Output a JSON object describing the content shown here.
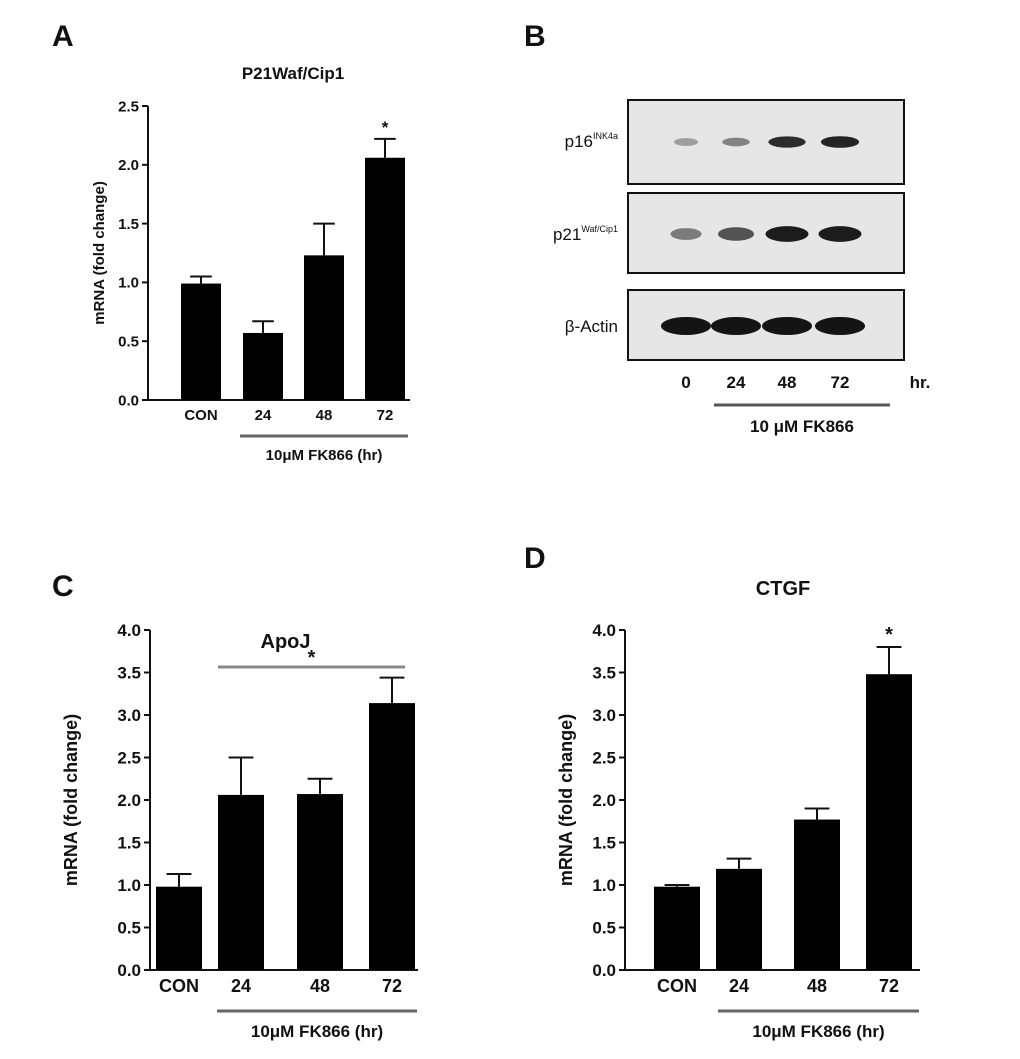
{
  "panels": {
    "a": {
      "letter": "A"
    },
    "b": {
      "letter": "B"
    },
    "c": {
      "letter": "C"
    },
    "d": {
      "letter": "D"
    }
  },
  "chart_data": [
    {
      "type": "bar",
      "panel": "A",
      "title": "P21Waf/Cip1",
      "ylabel": "mRNA (fold change)",
      "categories": [
        "CON",
        "24",
        "48",
        "72"
      ],
      "values": [
        0.99,
        0.57,
        1.23,
        2.06
      ],
      "errors": [
        0.06,
        0.1,
        0.27,
        0.16
      ],
      "ylim": [
        0.0,
        2.5
      ],
      "yticks": [
        "0.0",
        "0.5",
        "1.0",
        "1.5",
        "2.0",
        "2.5"
      ],
      "significance": [
        {
          "category": "72",
          "label": "*"
        }
      ],
      "bracket_label": "10μM FK866 (hr)",
      "bar_color": "#000000"
    },
    {
      "type": "bar",
      "panel": "C",
      "title": "ApoJ",
      "ylabel": "mRNA (fold change)",
      "categories": [
        "CON",
        "24",
        "48",
        "72"
      ],
      "values": [
        0.98,
        2.06,
        2.07,
        3.14
      ],
      "errors": [
        0.15,
        0.44,
        0.18,
        0.3
      ],
      "ylim": [
        0.0,
        4.0
      ],
      "yticks": [
        "0.0",
        "0.5",
        "1.0",
        "1.5",
        "2.0",
        "2.5",
        "3.0",
        "3.5",
        "4.0"
      ],
      "significance_line": {
        "from": "24",
        "to": "72",
        "label": "*"
      },
      "bracket_label": "10μM FK866 (hr)",
      "bar_color": "#000000"
    },
    {
      "type": "bar",
      "panel": "D",
      "title": "CTGF",
      "ylabel": "mRNA (fold change)",
      "categories": [
        "CON",
        "24",
        "48",
        "72"
      ],
      "values": [
        0.98,
        1.19,
        1.77,
        3.48
      ],
      "errors": [
        0.02,
        0.12,
        0.13,
        0.32
      ],
      "ylim": [
        0.0,
        4.0
      ],
      "yticks": [
        "0.0",
        "0.5",
        "1.0",
        "1.5",
        "2.0",
        "2.5",
        "3.0",
        "3.5",
        "4.0"
      ],
      "significance": [
        {
          "category": "72",
          "label": "*"
        }
      ],
      "bracket_label": "10μM FK866 (hr)",
      "bar_color": "#000000"
    }
  ],
  "blot": {
    "rows": [
      {
        "name": "p16",
        "sup": "INK4a",
        "intensities": [
          0.12,
          0.3,
          0.85,
          0.9
        ]
      },
      {
        "name": "p21",
        "sup": "Waf/Cip1",
        "intensities": [
          0.35,
          0.6,
          0.95,
          0.95
        ]
      },
      {
        "name": "β-Actin",
        "sup": "",
        "intensities": [
          1.0,
          1.0,
          1.0,
          1.0
        ]
      }
    ],
    "lanes": [
      "0",
      "24",
      "48",
      "72"
    ],
    "unit": "hr.",
    "treatment": "10 μM FK866",
    "membrane_color": "#e6e6e6",
    "band_color": "#141414"
  }
}
